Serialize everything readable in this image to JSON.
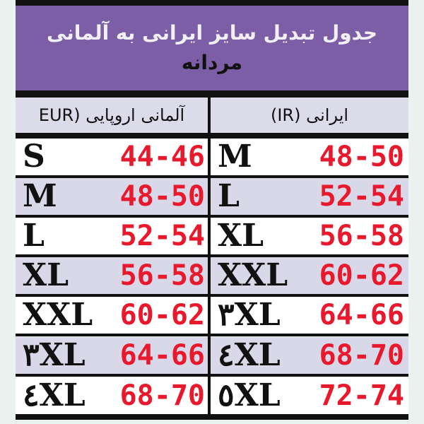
{
  "title": "جدول تبدیل سایز ایرانی به آلمانی",
  "subtitle": "مردانه",
  "columns": {
    "left_header": "آلمانی اروپایی (EUR",
    "right_header": "ایرانی (IR)"
  },
  "rows": [
    {
      "eur_size": "S",
      "eur_range": "44-46",
      "ir_size": "M",
      "ir_range": "48-50"
    },
    {
      "eur_size": "M",
      "eur_range": "48-50",
      "ir_size": "L",
      "ir_range": "52-54"
    },
    {
      "eur_size": "L",
      "eur_range": "52-54",
      "ir_size": "XL",
      "ir_range": "56-58"
    },
    {
      "eur_size": "XL",
      "eur_range": "56-58",
      "ir_size": "XXL",
      "ir_range": "60-62"
    },
    {
      "eur_size": "XXL",
      "eur_range": "60-62",
      "ir_size": "٣XL",
      "ir_range": "64-66"
    },
    {
      "eur_size": "٣XL",
      "eur_range": "64-66",
      "ir_size": "٤XL",
      "ir_range": "68-70"
    },
    {
      "eur_size": "٤XL",
      "eur_range": "68-70",
      "ir_size": "٥XL",
      "ir_range": "72-74"
    }
  ],
  "colors": {
    "banner": "#7b5ea6",
    "range_text": "#e8192c",
    "alt_row": "#d9d8e8"
  }
}
